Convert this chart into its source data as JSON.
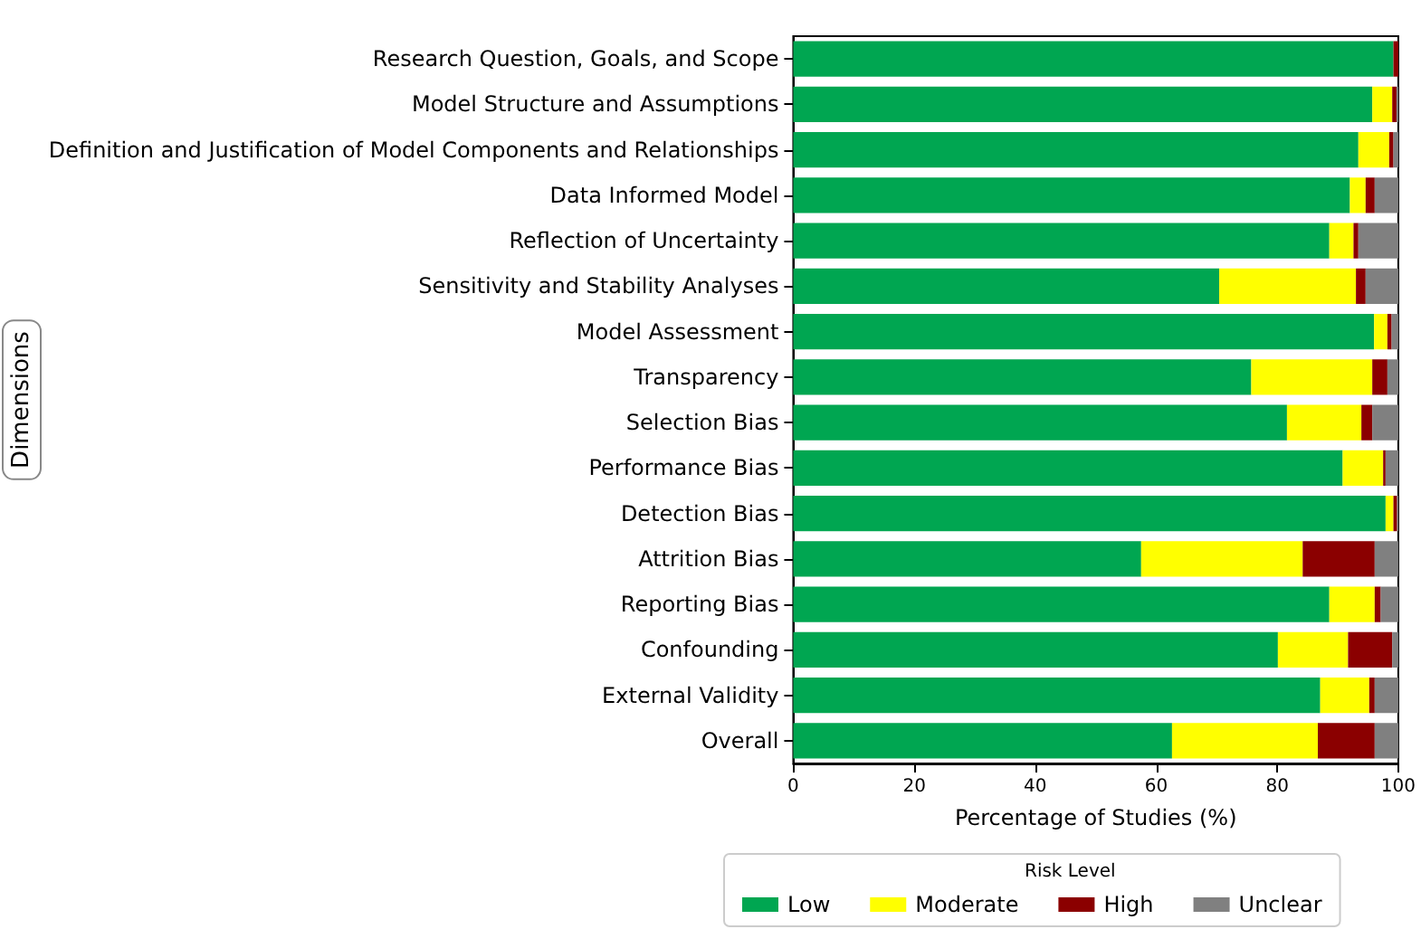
{
  "chart_data": {
    "type": "bar",
    "orientation": "horizontal",
    "stacked": true,
    "xlabel": "Percentage of Studies (%)",
    "ylabel": "Dimensions",
    "legend_title": "Risk Level",
    "legend": "bottom",
    "grid": false,
    "xlim": [
      0,
      100
    ],
    "xticks": [
      0,
      20,
      40,
      60,
      80,
      100
    ],
    "categories": [
      "Research Question, Goals, and Scope",
      "Model Structure and Assumptions",
      "Definition and Justification of Model Components and Relationships",
      "Data Informed Model",
      "Reflection of Uncertainty",
      "Sensitivity and Stability Analyses",
      "Model Assessment",
      "Transparency",
      "Selection Bias",
      "Performance Bias",
      "Detection Bias",
      "Attrition Bias",
      "Reporting Bias",
      "Confounding",
      "External Validity",
      "Overall"
    ],
    "series": [
      {
        "name": "Low",
        "color": "#00a651",
        "values": [
          99.2,
          95.7,
          93.4,
          92.0,
          88.6,
          70.4,
          96.0,
          75.7,
          81.6,
          90.8,
          97.9,
          57.5,
          88.6,
          80.1,
          87.1,
          62.6
        ]
      },
      {
        "name": "Moderate",
        "color": "#ffff00",
        "values": [
          0,
          3.3,
          5.1,
          2.6,
          4.0,
          22.6,
          2.2,
          20.0,
          12.3,
          6.7,
          1.3,
          26.7,
          7.5,
          11.6,
          8.1,
          24.1
        ]
      },
      {
        "name": "High",
        "color": "#8b0000",
        "values": [
          0.8,
          0.7,
          0.7,
          1.5,
          0.8,
          1.6,
          0.7,
          2.5,
          1.8,
          0.4,
          0.6,
          11.9,
          1.0,
          7.3,
          0.9,
          9.4
        ]
      },
      {
        "name": "Unclear",
        "color": "#808080",
        "values": [
          0,
          0.3,
          0.8,
          3.9,
          6.6,
          5.4,
          1.1,
          1.8,
          4.3,
          2.1,
          0.2,
          3.9,
          2.9,
          1.0,
          3.9,
          3.9
        ]
      }
    ]
  }
}
